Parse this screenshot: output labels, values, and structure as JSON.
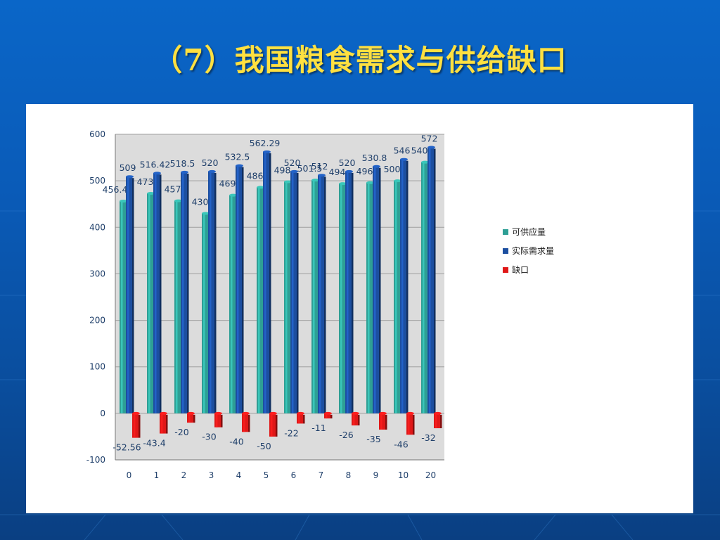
{
  "slide": {
    "title": "（7）我国粮食需求与供给缺口"
  },
  "chart_data": {
    "type": "bar",
    "categories": [
      "0",
      "1",
      "2",
      "3",
      "4",
      "5",
      "6",
      "7",
      "8",
      "9",
      "10",
      "20"
    ],
    "ylim": [
      -100,
      600
    ],
    "yticks": [
      -100,
      0,
      100,
      200,
      300,
      400,
      500,
      600
    ],
    "grid": true,
    "legend_position": "right",
    "series": [
      {
        "name": "可供应量",
        "color": "#2e9f95",
        "values": [
          456.44,
          473,
          457,
          430,
          469,
          486,
          498,
          501.5,
          494,
          496,
          500,
          540
        ],
        "labels": [
          "456.44",
          "473",
          "457",
          "430",
          "469",
          "486",
          "498",
          "501.5",
          "494",
          "496",
          "500",
          "540"
        ]
      },
      {
        "name": "实际需求量",
        "color": "#1c4fa0",
        "values": [
          509,
          516.42,
          518.5,
          520,
          532.5,
          562.29,
          520,
          512,
          520,
          530.8,
          546,
          572
        ],
        "labels": [
          "509",
          "516.42",
          "518.5",
          "520",
          "532.5",
          "562.29",
          "520",
          "512",
          "520",
          "530.8",
          "546",
          "572"
        ]
      },
      {
        "name": "缺口",
        "color": "#e01818",
        "values": [
          -52.56,
          -43.4,
          -20,
          -30,
          -40,
          -50,
          -22,
          -11,
          -26,
          -35,
          -46,
          -32
        ],
        "labels": [
          "-52.56",
          "-43.4",
          "-20",
          "-30",
          "-40",
          "-50",
          "-22",
          "-11",
          "-26",
          "-35",
          "-46",
          "-32"
        ]
      }
    ]
  }
}
